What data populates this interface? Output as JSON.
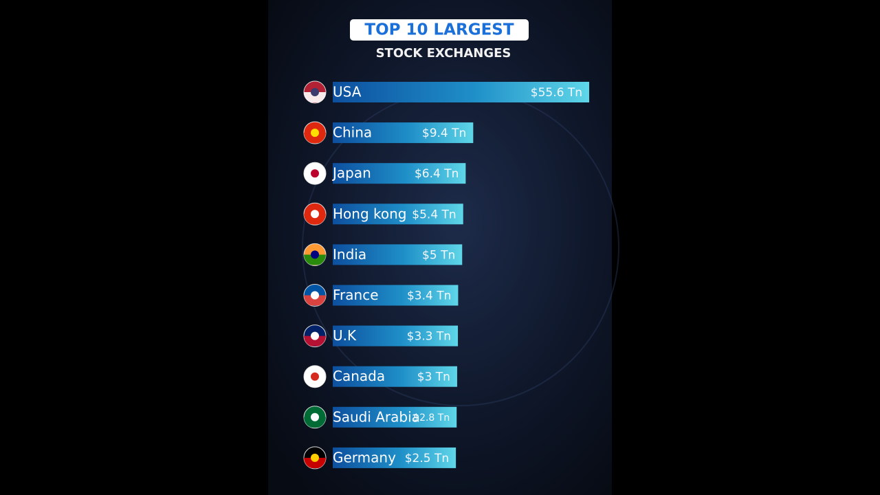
{
  "chart_data": {
    "type": "bar",
    "orientation": "horizontal",
    "title": "TOP 10 LARGEST",
    "subtitle": "STOCK EXCHANGES",
    "categories": [
      "USA",
      "China",
      "Japan",
      "Hong kong",
      "India",
      "France",
      "U.K",
      "Canada",
      "Saudi Arabia",
      "Germany"
    ],
    "values": [
      55.6,
      9.4,
      6.4,
      5.4,
      5,
      3.4,
      3.3,
      3,
      2.8,
      2.5
    ],
    "value_labels": [
      "$55.6 Tn",
      "$9.4 Tn",
      "$6.4 Tn",
      "$5.4 Tn",
      "$5 Tn",
      "$3.4 Tn",
      "$3.3 Tn",
      "$3 Tn",
      "$2.8 Tn",
      "$2.5 Tn"
    ],
    "color": "#1a6fc0"
  }
}
